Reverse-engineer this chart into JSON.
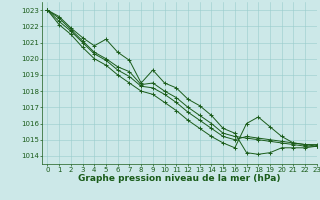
{
  "background_color": "#cce8e8",
  "grid_color": "#99cccc",
  "line_color": "#1a5c1a",
  "xlabel": "Graphe pression niveau de la mer (hPa)",
  "xlabel_fontsize": 6.5,
  "xlim": [
    -0.5,
    23
  ],
  "ylim": [
    1013.5,
    1023.5
  ],
  "yticks": [
    1014,
    1015,
    1016,
    1017,
    1018,
    1019,
    1020,
    1021,
    1022,
    1023
  ],
  "xticks": [
    0,
    1,
    2,
    3,
    4,
    5,
    6,
    7,
    8,
    9,
    10,
    11,
    12,
    13,
    14,
    15,
    16,
    17,
    18,
    19,
    20,
    21,
    22,
    23
  ],
  "tick_fontsize": 5.0,
  "series": [
    [
      1023.0,
      1022.6,
      1021.9,
      1021.3,
      1020.8,
      1021.2,
      1020.4,
      1019.9,
      1018.5,
      1019.3,
      1018.5,
      1018.2,
      1017.5,
      1017.1,
      1016.5,
      1015.7,
      1015.4,
      1014.2,
      1014.1,
      1014.2,
      1014.5,
      1014.5,
      1014.5,
      1014.6
    ],
    [
      1023.0,
      1022.5,
      1021.8,
      1021.1,
      1020.4,
      1020.0,
      1019.5,
      1019.2,
      1018.4,
      1018.5,
      1018.0,
      1017.6,
      1017.0,
      1016.5,
      1016.0,
      1015.4,
      1015.2,
      1015.1,
      1015.0,
      1014.9,
      1014.8,
      1014.7,
      1014.6,
      1014.6
    ],
    [
      1023.0,
      1022.3,
      1021.7,
      1021.0,
      1020.3,
      1019.9,
      1019.3,
      1018.9,
      1018.3,
      1018.2,
      1017.8,
      1017.3,
      1016.7,
      1016.2,
      1015.7,
      1015.2,
      1015.0,
      1015.2,
      1015.1,
      1015.0,
      1014.9,
      1014.8,
      1014.7,
      1014.7
    ],
    [
      1023.0,
      1022.1,
      1021.5,
      1020.7,
      1020.0,
      1019.6,
      1019.0,
      1018.5,
      1018.0,
      1017.8,
      1017.3,
      1016.8,
      1016.2,
      1015.7,
      1015.2,
      1014.8,
      1014.5,
      1016.0,
      1016.4,
      1015.8,
      1015.2,
      1014.8,
      1014.7,
      1014.6
    ]
  ]
}
